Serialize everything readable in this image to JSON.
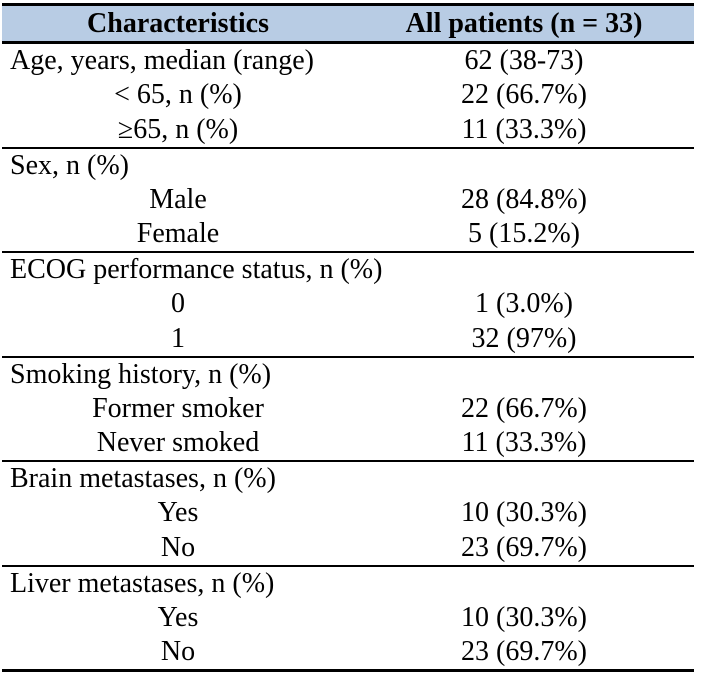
{
  "table": {
    "style": {
      "header_bg": "#b8cce4",
      "rule_color": "#000000"
    },
    "columns": [
      {
        "label": "Characteristics"
      },
      {
        "label": "All patients (n = 33)"
      }
    ],
    "rows": [
      {
        "label": "Age, years, median (range)",
        "value": "62 (38-73)",
        "style": "top"
      },
      {
        "label": "< 65, n (%)",
        "value": "22 (66.7%)",
        "style": "sub"
      },
      {
        "label": "≥65, n (%)",
        "value": "11 (33.3%)",
        "style": "sub"
      },
      {
        "label": "Sex, n (%)",
        "value": "",
        "style": "section"
      },
      {
        "label": "Male",
        "value": "28 (84.8%)",
        "style": "sub"
      },
      {
        "label": "Female",
        "value": "5 (15.2%)",
        "style": "sub"
      },
      {
        "label": "ECOG performance status, n (%)",
        "value": "",
        "style": "section"
      },
      {
        "label": "0",
        "value": "1 (3.0%)",
        "style": "sub"
      },
      {
        "label": "1",
        "value": "32 (97%)",
        "style": "sub"
      },
      {
        "label": "Smoking history, n (%)",
        "value": "",
        "style": "section"
      },
      {
        "label": "Former smoker",
        "value": "22 (66.7%)",
        "style": "sub"
      },
      {
        "label": "Never smoked",
        "value": "11 (33.3%)",
        "style": "sub"
      },
      {
        "label": "Brain metastases, n (%)",
        "value": "",
        "style": "section"
      },
      {
        "label": "Yes",
        "value": "10 (30.3%)",
        "style": "sub"
      },
      {
        "label": "No",
        "value": "23 (69.7%)",
        "style": "sub"
      },
      {
        "label": "Liver metastases, n (%)",
        "value": "",
        "style": "section"
      },
      {
        "label": "Yes",
        "value": "10 (30.3%)",
        "style": "sub"
      },
      {
        "label": "No",
        "value": "23 (69.7%)",
        "style": "sub"
      }
    ]
  }
}
